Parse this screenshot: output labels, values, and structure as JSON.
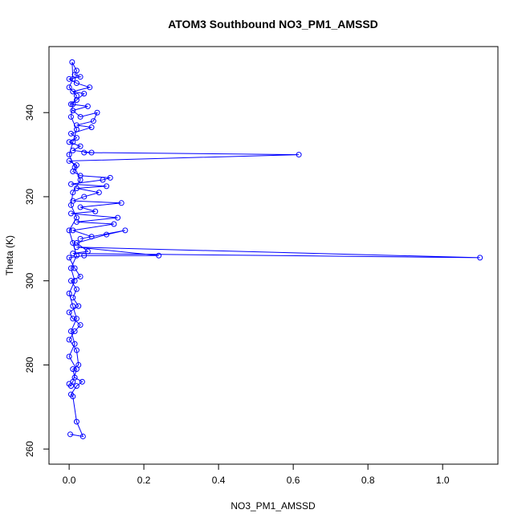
{
  "chart_data": {
    "type": "line",
    "title": "ATOM3 Southbound NO3_PM1_AMSSD",
    "x_label": "NO3_PM1_AMSSD",
    "y_label": "Theta (K)",
    "color": "#0000ff",
    "markers": true,
    "x": [
      0.003,
      0.037,
      0.02,
      0.01,
      0.005,
      0.02,
      0.035,
      0.015,
      0.01,
      0.025,
      0.02,
      0.0,
      0.015,
      0.03,
      0.01,
      0.0,
      0.025,
      0.01,
      0.02,
      0.005,
      0.03,
      0.015,
      0.0,
      0.04,
      0.24,
      0.02,
      1.1,
      0.01,
      0.05,
      0.02,
      0.1,
      0.15,
      0.03,
      0.06,
      0.01,
      0.12,
      0.02,
      0.13,
      0.005,
      0.07,
      0.03,
      0.14,
      0.01,
      0.04,
      0.08,
      0.02,
      0.1,
      0.005,
      0.09,
      0.11,
      0.03,
      0.01,
      0.02,
      0.0,
      0.615,
      0.04,
      0.06,
      0.01,
      0.03,
      0.0,
      0.02,
      0.005,
      0.06,
      0.02,
      0.065,
      0.075,
      0.03,
      0.01,
      0.05,
      0.005,
      0.02,
      0.04,
      0.01,
      0.055,
      0.02,
      0.0,
      0.03,
      0.015,
      0.02,
      0.008,
      0.01,
      0.0,
      0.02,
      0.01,
      0.005,
      0.02,
      0.01,
      0.0,
      0.015,
      0.03,
      0.01,
      0.005,
      0.02,
      0.0,
      0.01,
      0.02,
      0.005,
      0.015,
      0.0,
      0.01,
      0.02,
      0.005,
      0.015,
      0.0,
      0.02,
      0.01,
      0.005,
      0.0
    ],
    "values": [
      263.5,
      263,
      266.5,
      272.5,
      273,
      275,
      276,
      277,
      279,
      280,
      283.5,
      286,
      288,
      289.5,
      291,
      292.5,
      294,
      296,
      298,
      300,
      301,
      303,
      305.5,
      306,
      306,
      308,
      305.5,
      306.5,
      307,
      309,
      311,
      312,
      310,
      310.5,
      312,
      313.5,
      314,
      315,
      316,
      316.5,
      317.5,
      318.5,
      319,
      320,
      321,
      322,
      322.5,
      323,
      324,
      324.5,
      325,
      326,
      327.5,
      328.5,
      330,
      330.5,
      330.5,
      331,
      332,
      333,
      334,
      335,
      336.5,
      337,
      338,
      340,
      339,
      340.5,
      341.5,
      342,
      343,
      344.5,
      345,
      346,
      347,
      348,
      348.5,
      349,
      350,
      352,
      348,
      346,
      344,
      342,
      339,
      336,
      333,
      330,
      327,
      324,
      321,
      318,
      315,
      312,
      309,
      306,
      303,
      300,
      297,
      294,
      291,
      288,
      285,
      282,
      279,
      276,
      275,
      275.5
    ],
    "xlim": [
      -0.054,
      1.148
    ],
    "ylim": [
      256.4,
      355.7
    ],
    "xticks": [
      {
        "value": 0,
        "label": "0.0"
      },
      0.2,
      0.4,
      0.6,
      0.8,
      {
        "value": 1,
        "label": "1.0"
      }
    ],
    "yticks": [
      260,
      280,
      300,
      320,
      340
    ]
  }
}
